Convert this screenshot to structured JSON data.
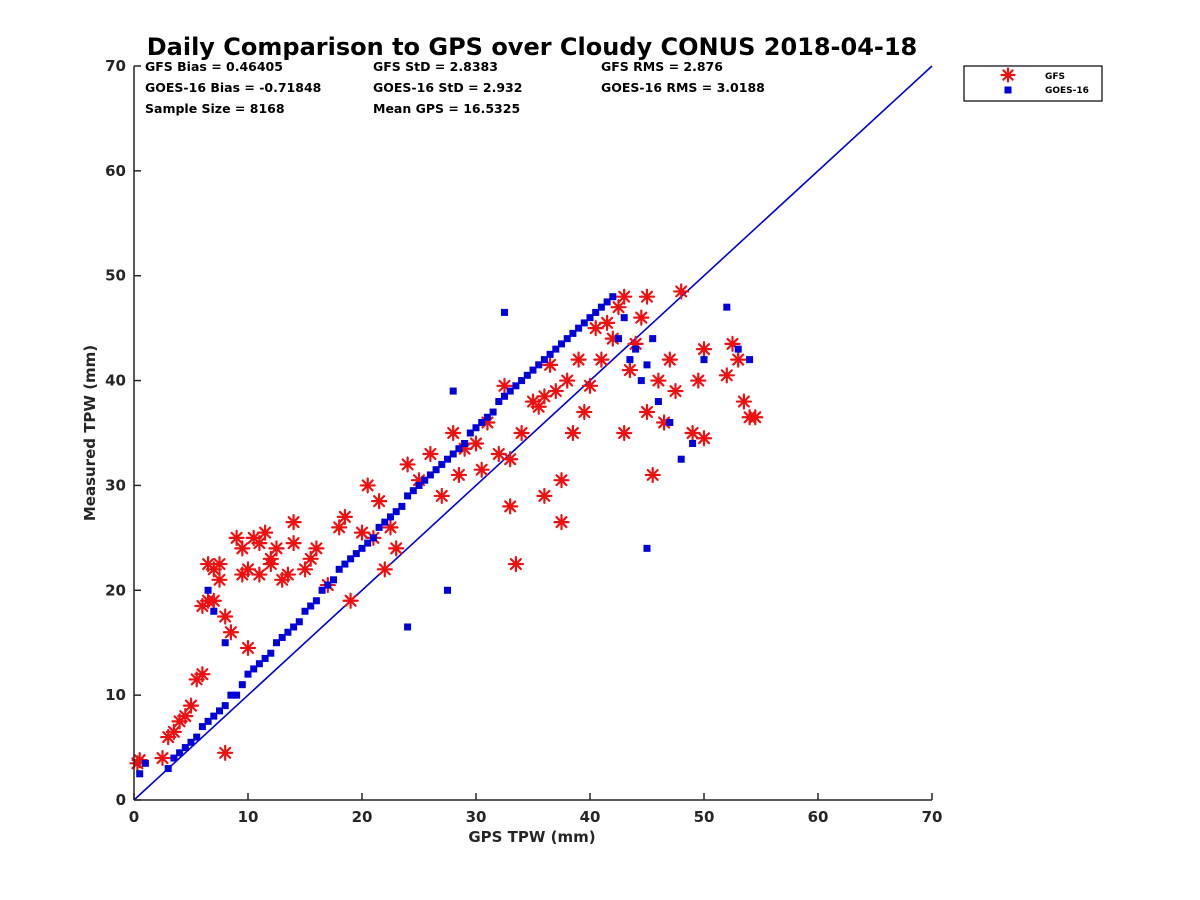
{
  "chart_data": {
    "type": "scatter",
    "title": "Daily Comparison to GPS over Cloudy CONUS 2018-04-18",
    "xlabel": "GPS TPW (mm)",
    "ylabel": "Measured TPW (mm)",
    "xlim": [
      0,
      70
    ],
    "ylim": [
      0,
      70
    ],
    "xticks": [
      0,
      10,
      20,
      30,
      40,
      50,
      60,
      70
    ],
    "yticks": [
      0,
      10,
      20,
      30,
      40,
      50,
      60,
      70
    ],
    "grid": false,
    "legend_position": "outside-top-right",
    "stats": [
      [
        "GFS Bias = 0.46405",
        "GFS StD = 2.8383",
        "GFS RMS = 2.876"
      ],
      [
        "GOES-16 Bias = -0.71848",
        "GOES-16 StD = 2.932",
        "GOES-16 RMS = 3.0188"
      ],
      [
        "Sample Size = 8168",
        "Mean GPS = 16.5325",
        ""
      ]
    ],
    "reference_line": {
      "from": [
        0,
        0
      ],
      "to": [
        70,
        70
      ],
      "color": "#0000dd"
    },
    "series": [
      {
        "name": "GFS",
        "marker": "asterisk",
        "color": "#ee1111",
        "x": [
          0.3,
          0.5,
          2.5,
          3.0,
          3.5,
          4.0,
          4.5,
          5.0,
          5.5,
          6.0,
          6.0,
          6.5,
          6.5,
          7.0,
          7.0,
          7.5,
          7.5,
          8.0,
          8.0,
          8.5,
          9.0,
          9.5,
          9.5,
          10.0,
          10.0,
          10.5,
          11.0,
          11.0,
          11.5,
          12.0,
          12.0,
          12.5,
          13.0,
          13.5,
          14.0,
          14.0,
          15.0,
          15.5,
          16.0,
          17.0,
          18.0,
          18.5,
          19.0,
          20.0,
          20.5,
          21.0,
          21.5,
          22.0,
          22.5,
          23.0,
          24.0,
          25.0,
          26.0,
          27.0,
          28.0,
          28.5,
          29.0,
          30.0,
          30.5,
          31.0,
          32.0,
          32.5,
          33.0,
          33.5,
          34.0,
          35.0,
          35.5,
          36.0,
          36.5,
          37.0,
          37.5,
          38.0,
          38.5,
          39.0,
          39.5,
          40.0,
          40.5,
          41.0,
          41.5,
          42.0,
          42.5,
          43.0,
          43.5,
          44.0,
          44.5,
          45.0,
          45.5,
          46.0,
          46.5,
          47.0,
          47.5,
          48.0,
          49.0,
          49.5,
          50.0,
          50.0,
          52.0,
          52.5,
          53.0,
          53.5,
          54.0,
          54.5,
          36.0,
          37.5,
          33.0,
          43.0,
          45.0
        ],
        "y": [
          3.5,
          3.8,
          4.0,
          6.0,
          6.5,
          7.5,
          8.0,
          9.0,
          11.5,
          12.0,
          18.5,
          19.0,
          22.5,
          19.0,
          22.0,
          21.0,
          22.5,
          4.5,
          17.5,
          16.0,
          25.0,
          21.5,
          24.0,
          22.0,
          14.5,
          25.0,
          21.5,
          24.5,
          25.5,
          22.5,
          23.0,
          24.0,
          21.0,
          21.5,
          26.5,
          24.5,
          22.0,
          23.0,
          24.0,
          20.5,
          26.0,
          27.0,
          19.0,
          25.5,
          30.0,
          25.0,
          28.5,
          22.0,
          26.0,
          24.0,
          32.0,
          30.5,
          33.0,
          29.0,
          35.0,
          31.0,
          33.5,
          34.0,
          31.5,
          36.0,
          33.0,
          39.5,
          28.0,
          22.5,
          35.0,
          38.0,
          37.5,
          38.5,
          41.5,
          39.0,
          30.5,
          40.0,
          35.0,
          42.0,
          37.0,
          39.5,
          45.0,
          42.0,
          45.5,
          44.0,
          47.0,
          48.0,
          41.0,
          43.5,
          46.0,
          48.0,
          31.0,
          40.0,
          36.0,
          42.0,
          39.0,
          48.5,
          35.0,
          40.0,
          34.5,
          43.0,
          40.5,
          43.5,
          42.0,
          38.0,
          36.5,
          36.5,
          29.0,
          26.5,
          32.5,
          35.0,
          37.0
        ]
      },
      {
        "name": "GOES-16",
        "marker": "square",
        "color": "#0000dd",
        "x": [
          0.5,
          1.0,
          3.0,
          3.5,
          4.0,
          4.5,
          5.0,
          5.5,
          6.0,
          6.5,
          7.0,
          7.5,
          8.0,
          8.5,
          9.0,
          9.5,
          10.0,
          10.5,
          11.0,
          11.5,
          12.0,
          12.5,
          13.0,
          13.5,
          14.0,
          14.5,
          15.0,
          15.5,
          16.0,
          16.5,
          17.0,
          17.5,
          18.0,
          18.5,
          19.0,
          19.5,
          20.0,
          20.5,
          21.0,
          21.5,
          22.0,
          22.5,
          23.0,
          23.5,
          24.0,
          24.5,
          25.0,
          25.5,
          26.0,
          26.5,
          27.0,
          27.5,
          28.0,
          28.5,
          29.0,
          29.5,
          30.0,
          30.5,
          31.0,
          31.5,
          32.0,
          32.5,
          33.0,
          33.5,
          34.0,
          34.5,
          35.0,
          35.5,
          36.0,
          36.5,
          37.0,
          37.5,
          38.0,
          38.5,
          39.0,
          39.5,
          40.0,
          40.5,
          41.0,
          41.5,
          42.0,
          42.5,
          43.0,
          43.5,
          44.0,
          44.5,
          45.0,
          45.5,
          46.0,
          47.0,
          48.0,
          49.0,
          50.0,
          52.0,
          53.0,
          54.0,
          6.5,
          7.0,
          8.0,
          28.0,
          32.5,
          45.0,
          24.0,
          27.5
        ],
        "y": [
          2.5,
          3.5,
          3.0,
          4.0,
          4.5,
          5.0,
          5.5,
          6.0,
          7.0,
          7.5,
          8.0,
          8.5,
          9.0,
          10.0,
          10.0,
          11.0,
          12.0,
          12.5,
          13.0,
          13.5,
          14.0,
          15.0,
          15.5,
          16.0,
          16.5,
          17.0,
          18.0,
          18.5,
          19.0,
          20.0,
          20.5,
          21.0,
          22.0,
          22.5,
          23.0,
          23.5,
          24.0,
          24.5,
          25.0,
          26.0,
          26.5,
          27.0,
          27.5,
          28.0,
          29.0,
          29.5,
          30.0,
          30.5,
          31.0,
          31.5,
          32.0,
          32.5,
          33.0,
          33.5,
          34.0,
          35.0,
          35.5,
          36.0,
          36.5,
          37.0,
          38.0,
          38.5,
          39.0,
          39.5,
          40.0,
          40.5,
          41.0,
          41.5,
          42.0,
          42.5,
          43.0,
          43.5,
          44.0,
          44.5,
          45.0,
          45.5,
          46.0,
          46.5,
          47.0,
          47.5,
          48.0,
          44.0,
          46.0,
          42.0,
          43.0,
          40.0,
          41.5,
          44.0,
          38.0,
          36.0,
          32.5,
          34.0,
          42.0,
          47.0,
          43.0,
          42.0,
          20.0,
          18.0,
          15.0,
          39.0,
          46.5,
          24.0,
          16.5,
          20.0
        ]
      }
    ]
  },
  "legend": {
    "items": [
      {
        "label": "GFS",
        "marker": "asterisk",
        "color": "#ee1111"
      },
      {
        "label": "GOES-16",
        "marker": "square",
        "color": "#0000dd"
      }
    ]
  }
}
